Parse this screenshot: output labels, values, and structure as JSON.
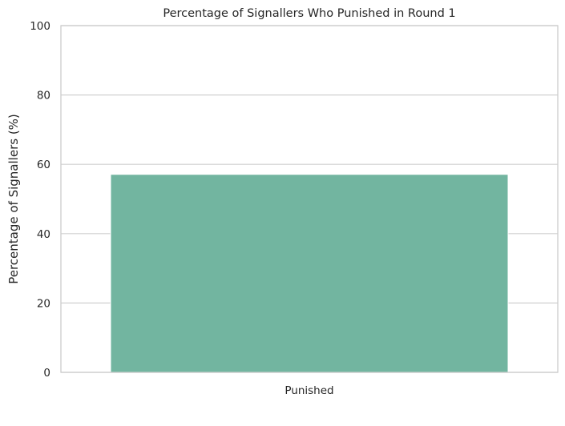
{
  "chart_data": {
    "type": "bar",
    "title": "Percentage of Signallers Who Punished in Round 1",
    "xlabel": "",
    "ylabel": "Percentage of Signallers (%)",
    "categories": [
      "Punished"
    ],
    "values": [
      57.1
    ],
    "ylim": [
      0,
      100
    ],
    "yticks": [
      "0",
      "20",
      "40",
      "60",
      "80",
      "100"
    ],
    "grid": "horizontal",
    "colors": {
      "bar": "#72b5a0",
      "bar_edge": "#ffffff"
    }
  }
}
